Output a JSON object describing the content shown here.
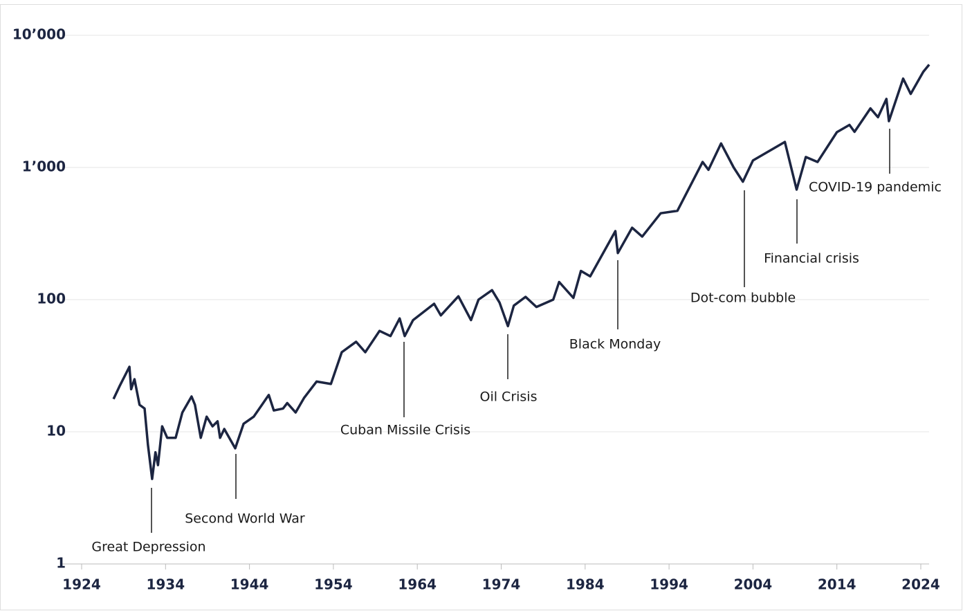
{
  "chart_data": {
    "type": "line",
    "log_y": true,
    "grid": true,
    "x": [
      1927.8,
      1928.5,
      1929.7,
      1929.9,
      1930.3,
      1930.9,
      1931.5,
      1931.9,
      1932.4,
      1932.8,
      1933.1,
      1933.6,
      1934.2,
      1935.2,
      1936.0,
      1937.1,
      1937.5,
      1938.2,
      1938.9,
      1939.6,
      1940.2,
      1940.5,
      1941.0,
      1942.3,
      1943.3,
      1944.5,
      1946.3,
      1946.9,
      1948.0,
      1948.5,
      1949.5,
      1950.5,
      1952.0,
      1953.7,
      1955.0,
      1956.7,
      1957.8,
      1959.5,
      1960.8,
      1961.9,
      1962.5,
      1963.5,
      1966.0,
      1966.8,
      1968.9,
      1970.4,
      1971.3,
      1972.9,
      1973.8,
      1974.8,
      1975.5,
      1976.9,
      1978.2,
      1980.2,
      1980.9,
      1982.6,
      1983.5,
      1984.6,
      1987.6,
      1987.9,
      1989.6,
      1990.8,
      1993.0,
      1995.0,
      1998.0,
      1998.7,
      2000.2,
      2001.7,
      2002.8,
      2004.0,
      2007.8,
      2009.2,
      2010.3,
      2011.7,
      2014.0,
      2015.5,
      2016.1,
      2018.0,
      2018.9,
      2019.9,
      2020.2,
      2021.9,
      2022.8,
      2024.3,
      2025.0
    ],
    "series": [
      {
        "color": "#1c2541",
        "values": [
          17.7,
          22,
          31,
          21,
          25,
          16,
          15,
          8,
          4.4,
          7,
          5.6,
          11,
          9,
          9,
          14,
          18.5,
          16,
          9,
          13,
          11,
          12,
          9,
          10.5,
          7.5,
          11.5,
          13,
          19,
          14.5,
          15,
          16.5,
          14,
          18,
          24,
          23,
          40,
          48,
          40,
          58,
          53,
          72,
          53,
          70,
          93,
          76,
          106,
          70,
          100,
          118,
          95,
          63,
          90,
          105,
          88,
          100,
          136,
          103,
          165,
          150,
          330,
          225,
          350,
          300,
          450,
          470,
          1100,
          960,
          1520,
          1000,
          780,
          1130,
          1560,
          680,
          1200,
          1100,
          1850,
          2100,
          1860,
          2800,
          2400,
          3300,
          2240,
          4700,
          3600,
          5300,
          6000
        ]
      }
    ],
    "xlim": [
      1924,
      2025.5
    ],
    "xticks": [
      1924,
      1934,
      1944,
      1954,
      1964,
      1974,
      1984,
      1994,
      2004,
      2014,
      2024
    ],
    "ylim": [
      1,
      10000
    ],
    "yticks": [
      1,
      10,
      100,
      {
        "value": 1000,
        "label": "1’000"
      },
      {
        "value": 10000,
        "label": "10’000"
      }
    ],
    "annotations": [
      "Great Depression",
      "Second World War",
      "Cuban Missile Crisis",
      "Oil Crisis",
      "Black Monday",
      "Dot-com bubble",
      "Financial crisis",
      "COVID-19 pandemic"
    ]
  }
}
